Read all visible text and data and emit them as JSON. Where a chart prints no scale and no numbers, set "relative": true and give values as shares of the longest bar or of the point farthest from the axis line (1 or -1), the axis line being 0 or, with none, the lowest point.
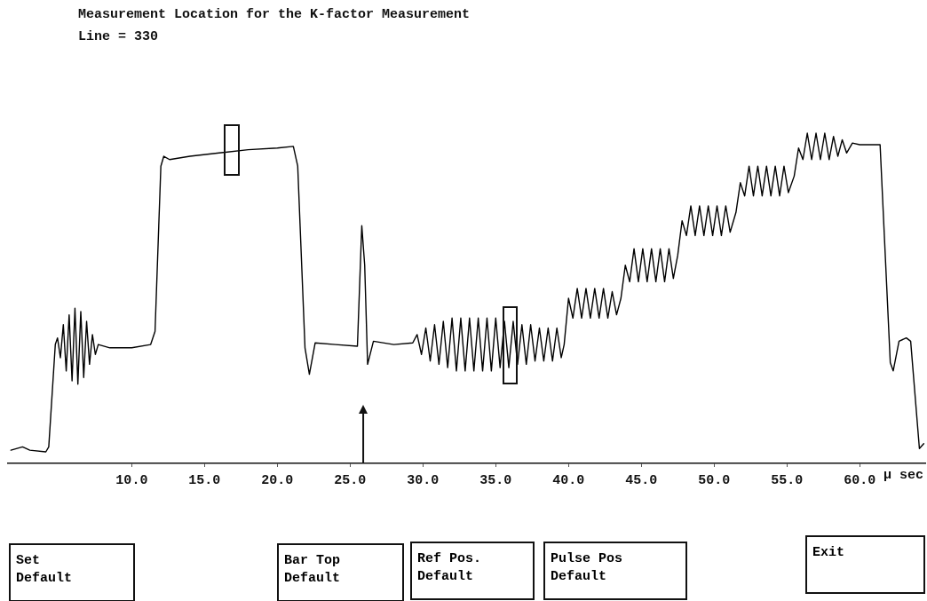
{
  "chart_data": {
    "type": "line",
    "title": "Measurement Location for the K-factor Measurement",
    "subtitle": "Line = 330",
    "xlabel": "μ sec",
    "relative": true,
    "xlim": [
      1.5,
      64.5
    ],
    "xticks": [
      {
        "value": 10,
        "label": "10.0"
      },
      {
        "value": 15,
        "label": "15.0"
      },
      {
        "value": 20,
        "label": "20.0"
      },
      {
        "value": 25,
        "label": "25.0"
      },
      {
        "value": 30,
        "label": "30.0"
      },
      {
        "value": 35,
        "label": "35.0"
      },
      {
        "value": 40,
        "label": "40.0"
      },
      {
        "value": 45,
        "label": "45.0"
      },
      {
        "value": 50,
        "label": "50.0"
      },
      {
        "value": 55,
        "label": "55.0"
      },
      {
        "value": 60,
        "label": "60.0"
      }
    ],
    "ref_lines": [
      {
        "axis": "x",
        "value": 25.9,
        "color": "#111111"
      }
    ],
    "annotations": [
      "Set\nDefault",
      "Bar Top\nDefault",
      "Ref Pos.\nDefault",
      "Pulse Pos\nDefault",
      "Exit"
    ],
    "series": [
      {
        "color": "#000000",
        "x": [
          1.7,
          2.5,
          3.0,
          4.1,
          4.3,
          4.75,
          4.9,
          5.1,
          5.3,
          5.5,
          5.7,
          5.9,
          6.1,
          6.3,
          6.5,
          6.7,
          6.9,
          7.1,
          7.3,
          7.5,
          7.7,
          8.5,
          10.0,
          11.3,
          11.6,
          12.0,
          12.2,
          12.6,
          14,
          16,
          18,
          20,
          21.1,
          21.4,
          21.9,
          22.2,
          22.6,
          24,
          25.5,
          25.8,
          26.0,
          26.2,
          26.6,
          28,
          29.3,
          29.6,
          29.9,
          30.2,
          30.5,
          30.8,
          31.1,
          31.4,
          31.7,
          32.0,
          32.3,
          32.6,
          32.9,
          33.2,
          33.5,
          33.8,
          34.1,
          34.4,
          34.7,
          35.0,
          35.3,
          35.6,
          35.9,
          36.2,
          36.5,
          36.8,
          37.1,
          37.4,
          37.7,
          38.0,
          38.3,
          38.6,
          38.9,
          39.2,
          39.5,
          39.7,
          40.0,
          40.3,
          40.6,
          40.9,
          41.2,
          41.5,
          41.8,
          42.1,
          42.4,
          42.7,
          43.0,
          43.3,
          43.6,
          43.9,
          44.2,
          44.5,
          44.8,
          45.1,
          45.4,
          45.7,
          46.0,
          46.3,
          46.6,
          46.9,
          47.2,
          47.5,
          47.8,
          48.1,
          48.4,
          48.7,
          49.0,
          49.3,
          49.6,
          49.9,
          50.2,
          50.5,
          50.8,
          51.1,
          51.5,
          51.8,
          52.1,
          52.4,
          52.7,
          53.0,
          53.3,
          53.6,
          53.9,
          54.2,
          54.5,
          54.8,
          55.1,
          55.5,
          55.8,
          56.1,
          56.4,
          56.7,
          57.0,
          57.3,
          57.6,
          57.9,
          58.2,
          58.5,
          58.8,
          59.1,
          59.5,
          60,
          61.4,
          62.1,
          62.3,
          62.7,
          63.2,
          63.5,
          64.1,
          64.4
        ],
        "values": [
          0.04,
          0.05,
          0.04,
          0.035,
          0.05,
          0.36,
          0.38,
          0.32,
          0.42,
          0.28,
          0.45,
          0.25,
          0.47,
          0.24,
          0.46,
          0.26,
          0.43,
          0.3,
          0.39,
          0.33,
          0.36,
          0.35,
          0.35,
          0.36,
          0.4,
          0.9,
          0.93,
          0.92,
          0.93,
          0.94,
          0.95,
          0.955,
          0.96,
          0.9,
          0.35,
          0.27,
          0.365,
          0.36,
          0.355,
          0.72,
          0.6,
          0.3,
          0.37,
          0.36,
          0.365,
          0.39,
          0.33,
          0.41,
          0.31,
          0.42,
          0.3,
          0.43,
          0.29,
          0.44,
          0.28,
          0.44,
          0.28,
          0.44,
          0.28,
          0.44,
          0.28,
          0.44,
          0.28,
          0.44,
          0.29,
          0.43,
          0.29,
          0.43,
          0.3,
          0.42,
          0.3,
          0.42,
          0.31,
          0.41,
          0.31,
          0.41,
          0.31,
          0.41,
          0.32,
          0.36,
          0.5,
          0.44,
          0.53,
          0.44,
          0.53,
          0.44,
          0.53,
          0.44,
          0.53,
          0.44,
          0.52,
          0.45,
          0.5,
          0.6,
          0.55,
          0.65,
          0.55,
          0.65,
          0.55,
          0.65,
          0.55,
          0.65,
          0.55,
          0.65,
          0.56,
          0.63,
          0.735,
          0.69,
          0.78,
          0.69,
          0.78,
          0.69,
          0.78,
          0.69,
          0.78,
          0.69,
          0.78,
          0.7,
          0.76,
          0.85,
          0.81,
          0.9,
          0.81,
          0.9,
          0.81,
          0.9,
          0.81,
          0.9,
          0.81,
          0.9,
          0.82,
          0.87,
          0.955,
          0.92,
          1.0,
          0.92,
          1.0,
          0.92,
          1.0,
          0.92,
          0.99,
          0.93,
          0.98,
          0.94,
          0.97,
          0.965,
          0.965,
          0.305,
          0.28,
          0.37,
          0.38,
          0.37,
          0.045,
          0.06
        ]
      }
    ]
  }
}
